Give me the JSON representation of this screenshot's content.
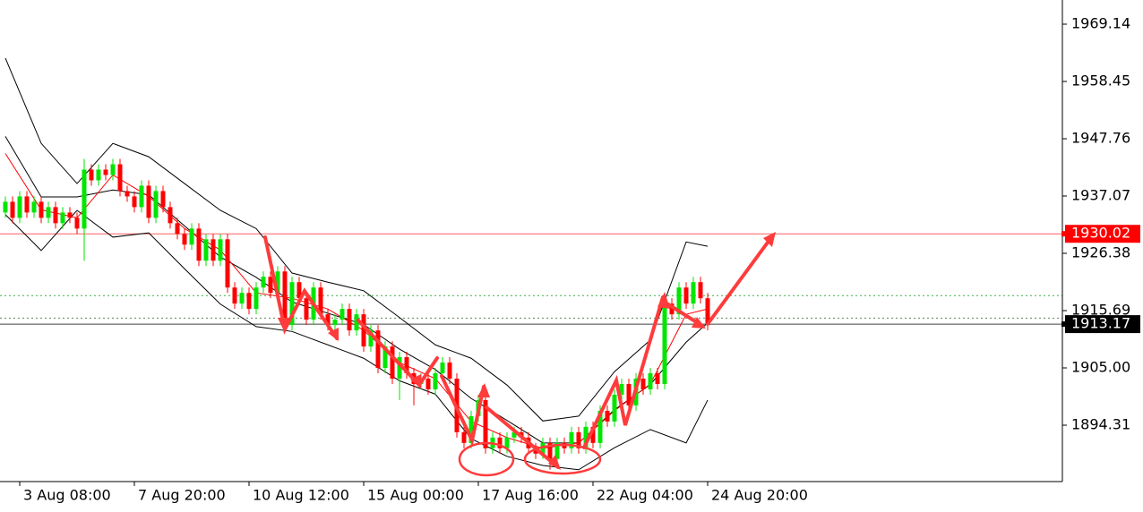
{
  "chart_data": {
    "type": "candlestick",
    "categories": [
      null,
      null,
      "3 Aug 08:00",
      null,
      null,
      null,
      null,
      null,
      null,
      null,
      null,
      null,
      null,
      null,
      null,
      null,
      null,
      null,
      "7 Aug 20:00",
      null,
      null,
      null,
      null,
      null,
      null,
      null,
      null,
      null,
      null,
      null,
      null,
      null,
      null,
      null,
      "10 Aug 12:00",
      null,
      null,
      null,
      null,
      null,
      null,
      null,
      null,
      null,
      null,
      null,
      null,
      null,
      null,
      null,
      "15 Aug 00:00",
      null,
      null,
      null,
      null,
      null,
      null,
      null,
      null,
      null,
      null,
      null,
      null,
      null,
      null,
      null,
      "17 Aug 16:00",
      null,
      null,
      null,
      null,
      null,
      null,
      null,
      null,
      null,
      null,
      null,
      null,
      null,
      null,
      null,
      "22 Aug 04:00",
      null,
      null,
      null,
      null,
      null,
      null,
      null,
      null,
      null,
      null,
      null,
      null,
      null,
      null,
      null,
      "24 Aug 20:00"
    ],
    "open": [
      1934,
      1936,
      1933,
      1937,
      1934,
      1936,
      1933,
      1935,
      1932,
      1934,
      1933,
      1931,
      1942,
      1940,
      1942,
      1941,
      1943,
      1938,
      1937,
      1935,
      1939,
      1933,
      1938,
      1935,
      1932,
      1930,
      1928,
      1931,
      1925,
      1929,
      1925,
      1929,
      1920,
      1917,
      1919,
      1916,
      1920,
      1922,
      1919,
      1923,
      1913,
      1921,
      1918,
      1914,
      1920,
      1915,
      1913,
      1914,
      1916,
      1912,
      1915,
      1909,
      1912,
      1905,
      1909,
      1903,
      1907,
      1904,
      1902,
      1903,
      1901,
      1904,
      1906,
      1903,
      1893,
      1891,
      1896,
      1899,
      1890,
      1892,
      1890,
      1892,
      1893,
      1892,
      1890,
      1889,
      1891,
      1888,
      1891,
      1890,
      1893,
      1890,
      1894,
      1891,
      1897,
      1895,
      1900,
      1902,
      1898,
      1903,
      1901,
      1904,
      1902,
      1917,
      1915,
      1920,
      1917,
      1921,
      1918
    ],
    "high": [
      1937,
      1937,
      1938,
      1938,
      1937,
      1937,
      1936,
      1936,
      1935,
      1935,
      1934,
      1944,
      1943,
      1943,
      1943,
      1944,
      1944,
      1939,
      1938,
      1940,
      1940,
      1939,
      1939,
      1936,
      1933,
      1931,
      1932,
      1932,
      1930,
      1930,
      1930,
      1930,
      1921,
      1920,
      1920,
      1921,
      1923,
      1923,
      1924,
      1924,
      1922,
      1922,
      1919,
      1921,
      1921,
      1916,
      1915,
      1917,
      1917,
      1916,
      1916,
      1913,
      1913,
      1910,
      1910,
      1908,
      1908,
      1905,
      1904,
      1904,
      1905,
      1907,
      1907,
      1904,
      1894,
      1897,
      1900,
      1900,
      1893,
      1893,
      1893,
      1894,
      1894,
      1893,
      1891,
      1892,
      1892,
      1892,
      1892,
      1894,
      1894,
      1895,
      1895,
      1898,
      1898,
      1901,
      1903,
      1903,
      1904,
      1904,
      1905,
      1905,
      1918,
      1918,
      1921,
      1921,
      1922,
      1922,
      1919
    ],
    "low": [
      1933,
      1932,
      1932,
      1933,
      1933,
      1932,
      1932,
      1931,
      1931,
      1932,
      1930,
      1925,
      1939,
      1939,
      1940,
      1940,
      1937,
      1936,
      1934,
      1934,
      1932,
      1932,
      1934,
      1931,
      1929,
      1927,
      1927,
      1924,
      1924,
      1924,
      1924,
      1919,
      1916,
      1916,
      1915,
      1915,
      1919,
      1918,
      1918,
      1912,
      1912,
      1917,
      1913,
      1913,
      1914,
      1912,
      1912,
      1913,
      1911,
      1911,
      1908,
      1908,
      1904,
      1904,
      1902,
      1899,
      1903,
      1898,
      1901,
      1900,
      1900,
      1903,
      1902,
      1892,
      1890,
      1890,
      1895,
      1889,
      1889,
      1889,
      1889,
      1891,
      1891,
      1889,
      1888,
      1888,
      1886,
      1887,
      1889,
      1889,
      1889,
      1889,
      1890,
      1890,
      1894,
      1894,
      1899,
      1897,
      1897,
      1900,
      1900,
      1901,
      1901,
      1914,
      1914,
      1916,
      1916,
      1917,
      1912
    ],
    "close": [
      1936,
      1933,
      1937,
      1934,
      1936,
      1933,
      1935,
      1932,
      1934,
      1933,
      1931,
      1942,
      1940,
      1942,
      1941,
      1943,
      1938,
      1937,
      1935,
      1939,
      1933,
      1938,
      1935,
      1932,
      1930,
      1928,
      1931,
      1925,
      1929,
      1925,
      1929,
      1920,
      1917,
      1919,
      1916,
      1920,
      1922,
      1919,
      1923,
      1913,
      1921,
      1918,
      1914,
      1920,
      1915,
      1913,
      1914,
      1916,
      1912,
      1915,
      1909,
      1912,
      1905,
      1909,
      1903,
      1907,
      1904,
      1902,
      1903,
      1901,
      1904,
      1906,
      1903,
      1893,
      1891,
      1896,
      1899,
      1890,
      1892,
      1890,
      1892,
      1893,
      1892,
      1890,
      1889,
      1891,
      1888,
      1891,
      1890,
      1893,
      1890,
      1894,
      1891,
      1897,
      1895,
      1900,
      1902,
      1898,
      1903,
      1901,
      1904,
      1902,
      1917,
      1915,
      1920,
      1917,
      1921,
      1918,
      1913
    ],
    "up_color": "#00e600",
    "down_color": "#ff0000",
    "overlays": [
      {
        "color": "#000000",
        "x": [
          0,
          5,
          10,
          15,
          20,
          25,
          30,
          35,
          40,
          45,
          50,
          55,
          60,
          65,
          70,
          75,
          80,
          85,
          90,
          95,
          98
        ],
        "values": [
          1962.8,
          1946.9,
          1939.4,
          1946.9,
          1944.4,
          1939.4,
          1934.4,
          1931.0,
          1922.7,
          1921.0,
          1919.4,
          1914.4,
          1909.3,
          1906.8,
          1901.8,
          1895.1,
          1896.0,
          1904.3,
          1910.2,
          1928.5,
          1927.7
        ]
      },
      {
        "color": "#000000",
        "x": [
          0,
          5,
          10,
          15,
          20,
          25,
          30,
          35,
          40,
          45,
          50,
          55,
          60,
          65,
          70,
          75,
          80,
          85,
          90,
          95,
          98
        ],
        "values": [
          1948.2,
          1936.9,
          1936.9,
          1938.2,
          1937.3,
          1931.5,
          1925.7,
          1921.9,
          1917.3,
          1915.2,
          1913.1,
          1908.5,
          1904.7,
          1899.3,
          1895.2,
          1891.0,
          1891.0,
          1897.2,
          1901.9,
          1909.8,
          1913.4
        ]
      },
      {
        "color": "#000000",
        "x": [
          0,
          5,
          10,
          15,
          20,
          25,
          30,
          35,
          40,
          45,
          50,
          55,
          60,
          65,
          70,
          75,
          80,
          85,
          90,
          95,
          98
        ],
        "values": [
          1933.6,
          1926.9,
          1934.4,
          1929.4,
          1930.2,
          1923.5,
          1916.9,
          1912.7,
          1911.8,
          1909.3,
          1906.8,
          1902.6,
          1900.1,
          1891.8,
          1888.5,
          1886.8,
          1886.0,
          1890.1,
          1893.5,
          1891.0,
          1899.0
        ]
      },
      {
        "color": "#ff0000",
        "x": [
          0,
          5,
          10,
          15,
          20,
          25,
          30,
          35,
          40,
          45,
          50,
          55,
          60,
          65,
          70,
          75,
          80,
          85,
          90,
          95,
          98
        ],
        "values": [
          1945,
          1934.5,
          1933,
          1941,
          1937,
          1931,
          1927,
          1919,
          1918,
          1916,
          1912,
          1906,
          1903,
          1895,
          1892,
          1890,
          1891,
          1897,
          1902,
          1915,
          1916
        ]
      }
    ],
    "levels": [
      {
        "value": 1930.02,
        "color": "#ff6060",
        "style": "solid",
        "tag_color": "#ff0000"
      },
      {
        "value": 1918.5,
        "color": "#3cb043",
        "style": "dotted"
      },
      {
        "value": 1914.3,
        "color": "#5a8a5a",
        "style": "dotted"
      },
      {
        "value": 1913.17,
        "color": "#404040",
        "style": "solid",
        "tag_color": "#000000"
      }
    ],
    "ylim": [
      1883.79,
      1973.65
    ],
    "yticks": [
      1969.14,
      1958.45,
      1947.76,
      1937.07,
      1926.38,
      1915.69,
      {
        "value": 1905,
        "label": "1905.00"
      },
      1894.31
    ]
  }
}
